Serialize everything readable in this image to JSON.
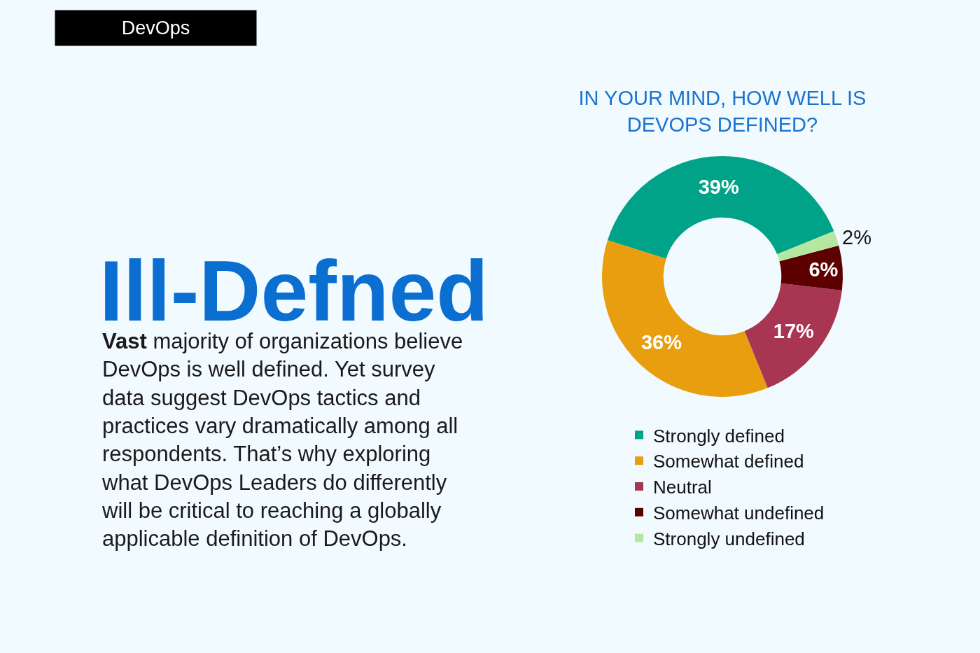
{
  "chart_data": {
    "type": "donut",
    "title": "IN YOUR MIND, HOW WELL IS\nDEVOPS DEFINED?",
    "categories": [
      "Strongly defined",
      "Somewhat defined",
      "Neutral",
      "Somewhat undefined",
      "Strongly undefined"
    ],
    "values": [
      39,
      36,
      17,
      6,
      2
    ],
    "colors": [
      "#00a387",
      "#e89e0f",
      "#a83552",
      "#5c0000",
      "#b5e7a0"
    ],
    "value_labels": [
      "39%",
      "36%",
      "17%",
      "6%",
      "2%"
    ],
    "legend": "bottom",
    "annotations": [
      "DevOps",
      "Ill-Defned",
      "Vast majority of organizations believe\nDevOps is well defined. Yet survey\ndata suggest DevOps tactics and\npractices vary dramatically among all\nrespondents. That’s why exploring\nwhat DevOps Leaders do differently\nwill be critical to reaching a globally\napplicable definition of DevOps."
    ]
  }
}
